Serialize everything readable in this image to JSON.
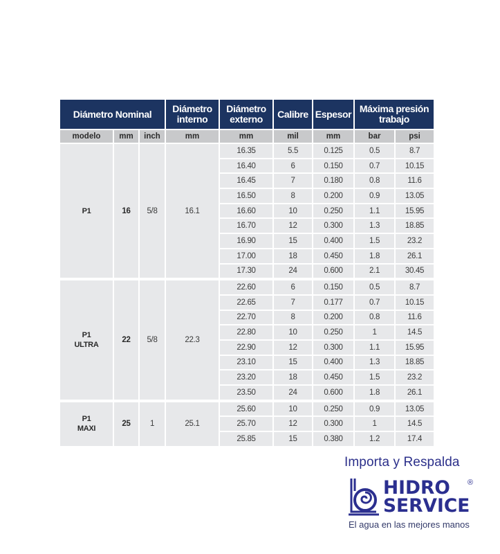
{
  "table": {
    "headers": {
      "nominal": "Diámetro Nominal",
      "interno": [
        "Diámetro",
        "interno"
      ],
      "externo": [
        "Diámetro",
        "externo"
      ],
      "calibre": "Calibre",
      "espesor": "Espesor",
      "presion": [
        "Máxima presión",
        "trabajo"
      ]
    },
    "subheaders": [
      "modelo",
      "mm",
      "inch",
      "mm",
      "mm",
      "mil",
      "mm",
      "bar",
      "psi"
    ],
    "groups": [
      {
        "modelo": [
          "P1"
        ],
        "mm": "16",
        "inch": "5/8",
        "interno": "16.1",
        "rows": [
          [
            "16.35",
            "5.5",
            "0.125",
            "0.5",
            "8.7"
          ],
          [
            "16.40",
            "6",
            "0.150",
            "0.7",
            "10.15"
          ],
          [
            "16.45",
            "7",
            "0.180",
            "0.8",
            "11.6"
          ],
          [
            "16.50",
            "8",
            "0.200",
            "0.9",
            "13.05"
          ],
          [
            "16.60",
            "10",
            "0.250",
            "1.1",
            "15.95"
          ],
          [
            "16.70",
            "12",
            "0.300",
            "1.3",
            "18.85"
          ],
          [
            "16.90",
            "15",
            "0.400",
            "1.5",
            "23.2"
          ],
          [
            "17.00",
            "18",
            "0.450",
            "1.8",
            "26.1"
          ],
          [
            "17.30",
            "24",
            "0.600",
            "2.1",
            "30.45"
          ]
        ]
      },
      {
        "modelo": [
          "P1",
          "ULTRA"
        ],
        "mm": "22",
        "inch": "5/8",
        "interno": "22.3",
        "rows": [
          [
            "22.60",
            "6",
            "0.150",
            "0.5",
            "8.7"
          ],
          [
            "22.65",
            "7",
            "0.177",
            "0.7",
            "10.15"
          ],
          [
            "22.70",
            "8",
            "0.200",
            "0.8",
            "11.6"
          ],
          [
            "22.80",
            "10",
            "0.250",
            "1",
            "14.5"
          ],
          [
            "22.90",
            "12",
            "0.300",
            "1.1",
            "15.95"
          ],
          [
            "23.10",
            "15",
            "0.400",
            "1.3",
            "18.85"
          ],
          [
            "23.20",
            "18",
            "0.450",
            "1.5",
            "23.2"
          ],
          [
            "23.50",
            "24",
            "0.600",
            "1.8",
            "26.1"
          ]
        ]
      },
      {
        "modelo": [
          "P1",
          "MAXI"
        ],
        "mm": "25",
        "inch": "1",
        "interno": "25.1",
        "rows": [
          [
            "25.60",
            "10",
            "0.250",
            "0.9",
            "13.05"
          ],
          [
            "25.70",
            "12",
            "0.300",
            "1",
            "14.5"
          ],
          [
            "25.85",
            "15",
            "0.380",
            "1.2",
            "17.4"
          ]
        ]
      }
    ]
  },
  "brand": {
    "tagline_top": "Importa y Respalda",
    "name_line1": "HIDRO",
    "name_line2": "SERVICE",
    "registered": "®",
    "tagline_bottom": "El agua en las mejores manos",
    "color": "#2b2f8f"
  },
  "colors": {
    "header": "#1c3461",
    "subheader": "#c8c9cb",
    "cell": "#e7e8ea"
  }
}
